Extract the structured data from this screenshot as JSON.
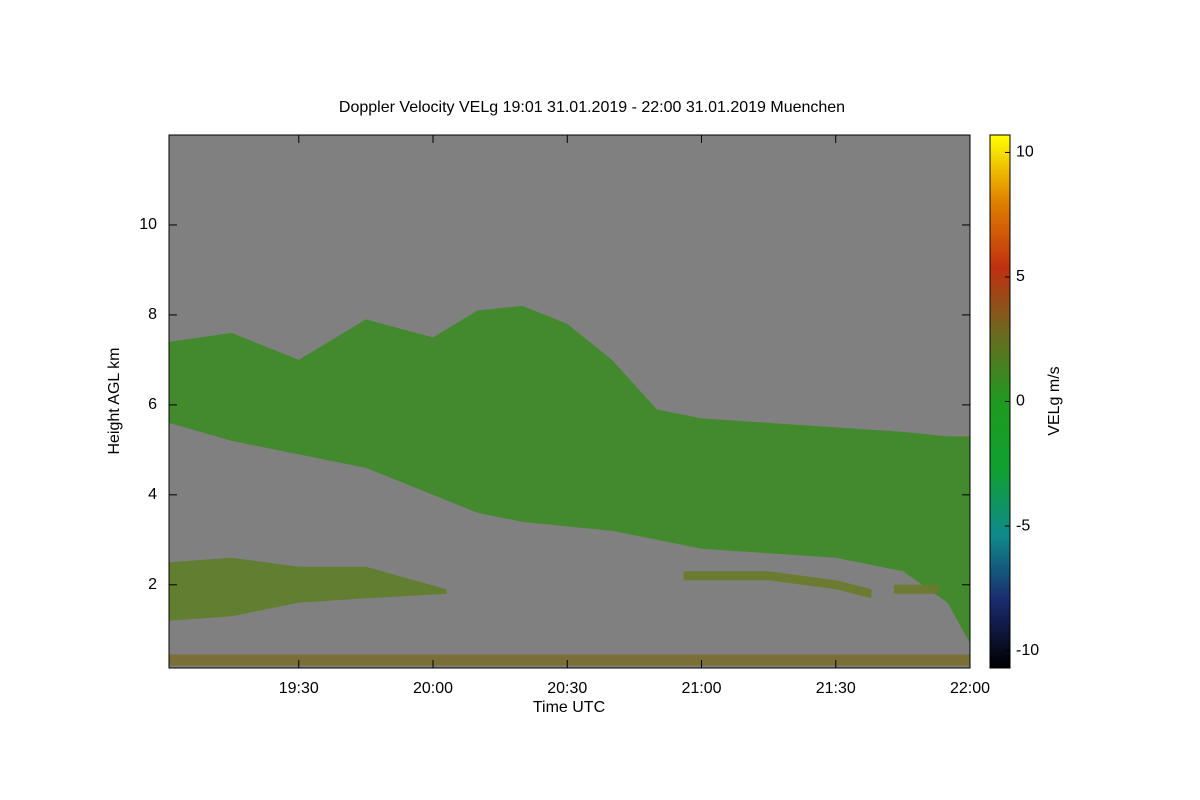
{
  "chart_data": {
    "type": "time-height",
    "title": "Doppler Velocity VELg   19:01 31.01.2019 - 22:00 31.01.2019 Muenchen",
    "x_label": "Time UTC",
    "y_label": "Height AGL km",
    "xlim": [
      "19:01",
      "22:00"
    ],
    "xticks": [
      "19:30",
      "20:00",
      "20:30",
      "21:00",
      "21:30",
      "22:00"
    ],
    "ylim": [
      0.15,
      12
    ],
    "yticks": [
      2,
      4,
      6,
      8,
      10
    ],
    "background": "#808080",
    "regions": [
      {
        "color": "#3f8a2a",
        "x": [
          "19:01",
          "19:15",
          "19:30",
          "19:45",
          "20:00",
          "20:10",
          "20:20",
          "20:30",
          "20:40",
          "20:50",
          "21:00",
          "21:15",
          "21:30",
          "21:45",
          "21:55",
          "22:00"
        ],
        "top": [
          7.4,
          7.6,
          7.0,
          7.9,
          7.5,
          8.1,
          8.2,
          7.8,
          7.0,
          5.9,
          5.7,
          5.6,
          5.5,
          5.4,
          5.3,
          5.3
        ],
        "base": [
          5.6,
          5.2,
          4.9,
          4.6,
          4.0,
          3.6,
          3.4,
          3.3,
          3.2,
          3.0,
          2.8,
          2.7,
          2.6,
          2.3,
          1.6,
          0.7
        ]
      },
      {
        "color": "#5f7d2c",
        "x": [
          "19:01",
          "19:15",
          "19:30",
          "19:45",
          "20:03"
        ],
        "top": [
          2.5,
          2.6,
          2.4,
          2.4,
          1.9
        ],
        "base": [
          1.2,
          1.3,
          1.6,
          1.7,
          1.8
        ]
      },
      {
        "color": "#6a7a2c",
        "x": [
          "20:56",
          "21:15",
          "21:30",
          "21:38"
        ],
        "top": [
          2.3,
          2.3,
          2.1,
          1.9
        ],
        "base": [
          2.1,
          2.1,
          1.9,
          1.7
        ]
      },
      {
        "color": "#6a7a2c",
        "x": [
          "21:43",
          "21:53"
        ],
        "top": [
          2.0,
          2.0
        ],
        "base": [
          1.8,
          1.8
        ]
      },
      {
        "color": "#7a6e34",
        "x": [
          "19:01",
          "22:00"
        ],
        "top": [
          0.45,
          0.45
        ],
        "base": [
          0.2,
          0.2
        ]
      }
    ],
    "colorbar": {
      "label": "VELg m/s",
      "lim": [
        -10.7,
        10.7
      ],
      "ticks": [
        -10,
        -5,
        0,
        5,
        10
      ],
      "colors": [
        "#000000",
        "#1a2a6e",
        "#0f8a8a",
        "#10a030",
        "#1f9a1f",
        "#6a6a20",
        "#c03010",
        "#e08000",
        "#ffff00"
      ]
    }
  }
}
